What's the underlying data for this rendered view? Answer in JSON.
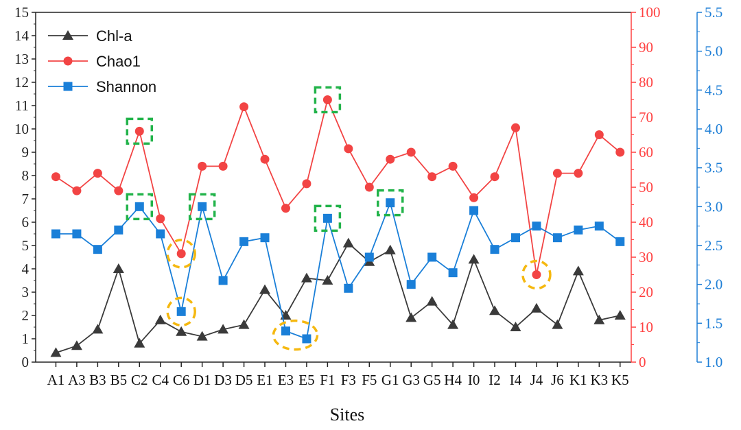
{
  "chart_data": {
    "type": "line",
    "xlabel": "Sites",
    "categories": [
      "A1",
      "A3",
      "B3",
      "B5",
      "C2",
      "C4",
      "C6",
      "D1",
      "D3",
      "D5",
      "E1",
      "E3",
      "E5",
      "F1",
      "F3",
      "F5",
      "G1",
      "G3",
      "G5",
      "H4",
      "I0",
      "I2",
      "I4",
      "J4",
      "J6",
      "K1",
      "K3",
      "K5"
    ],
    "axes": {
      "left": {
        "ylim": [
          0,
          15
        ],
        "ticks": [
          "0",
          "1",
          "2",
          "3",
          "4",
          "5",
          "6",
          "7",
          "8",
          "9",
          "10",
          "11",
          "12",
          "13",
          "14",
          "15"
        ],
        "color": "#222222"
      },
      "right1": {
        "ylim": [
          0,
          100
        ],
        "ticks": [
          "0",
          "10",
          "20",
          "30",
          "40",
          "50",
          "60",
          "70",
          "80",
          "90",
          "100"
        ],
        "color": "#ff4040"
      },
      "right2": {
        "ylim": [
          1.0,
          5.5
        ],
        "ticks": [
          "1.0",
          "1.5",
          "2.0",
          "2.5",
          "3.0",
          "3.5",
          "4.0",
          "4.5",
          "5.0",
          "5.5"
        ],
        "color": "#1f7fd6"
      }
    },
    "series": [
      {
        "name": "Chl-a",
        "axis": "left",
        "color": "#3a3a3a",
        "marker": "triangle",
        "values": [
          0.4,
          0.7,
          1.4,
          4.0,
          0.8,
          1.8,
          1.3,
          1.1,
          1.4,
          1.6,
          3.1,
          2.0,
          3.6,
          3.5,
          5.1,
          4.3,
          4.8,
          1.9,
          2.6,
          1.6,
          4.4,
          2.2,
          1.5,
          2.3,
          1.6,
          3.9,
          1.8,
          2.0
        ]
      },
      {
        "name": "Chao1",
        "axis": "right1",
        "color": "#f24444",
        "marker": "circle",
        "values": [
          53,
          49,
          54,
          49,
          66,
          41,
          31,
          56,
          56,
          73,
          58,
          44,
          51,
          75,
          61,
          50,
          58,
          60,
          53,
          56,
          47,
          53,
          67,
          25,
          54,
          54,
          65,
          60
        ]
      },
      {
        "name": "Shannon",
        "axis": "right2",
        "color": "#1a7fd8",
        "marker": "square",
        "values": [
          2.65,
          2.65,
          2.45,
          2.7,
          3.0,
          2.65,
          1.65,
          3.0,
          2.05,
          2.55,
          2.6,
          1.4,
          1.3,
          2.85,
          1.95,
          2.35,
          3.05,
          2.0,
          2.35,
          2.15,
          2.95,
          2.45,
          2.6,
          2.75,
          2.6,
          2.7,
          2.75,
          2.55
        ]
      }
    ],
    "legend_position": "top-left",
    "grid": false,
    "highlights": [
      {
        "style": "green-dashed-square",
        "series": "Chao1",
        "category": "C2"
      },
      {
        "style": "green-dashed-square",
        "series": "Shannon",
        "category": "C2"
      },
      {
        "style": "green-dashed-square",
        "series": "Shannon",
        "category": "D1"
      },
      {
        "style": "green-dashed-square",
        "series": "Chao1",
        "category": "F1"
      },
      {
        "style": "green-dashed-square",
        "series": "Shannon",
        "category": "F1"
      },
      {
        "style": "green-dashed-square",
        "series": "Shannon",
        "category": "G1"
      },
      {
        "style": "yellow-dashed-circle",
        "series": "Chao1",
        "category": "C6"
      },
      {
        "style": "yellow-dashed-circle",
        "series": "Shannon",
        "category": "C6"
      },
      {
        "style": "yellow-dashed-ellipse",
        "series": "Shannon",
        "category": "E3"
      },
      {
        "style": "yellow-dashed-circle",
        "series": "Chao1",
        "category": "J4"
      }
    ],
    "highlight_colors": {
      "green": "#22b34a",
      "yellow": "#f5b80f"
    }
  }
}
